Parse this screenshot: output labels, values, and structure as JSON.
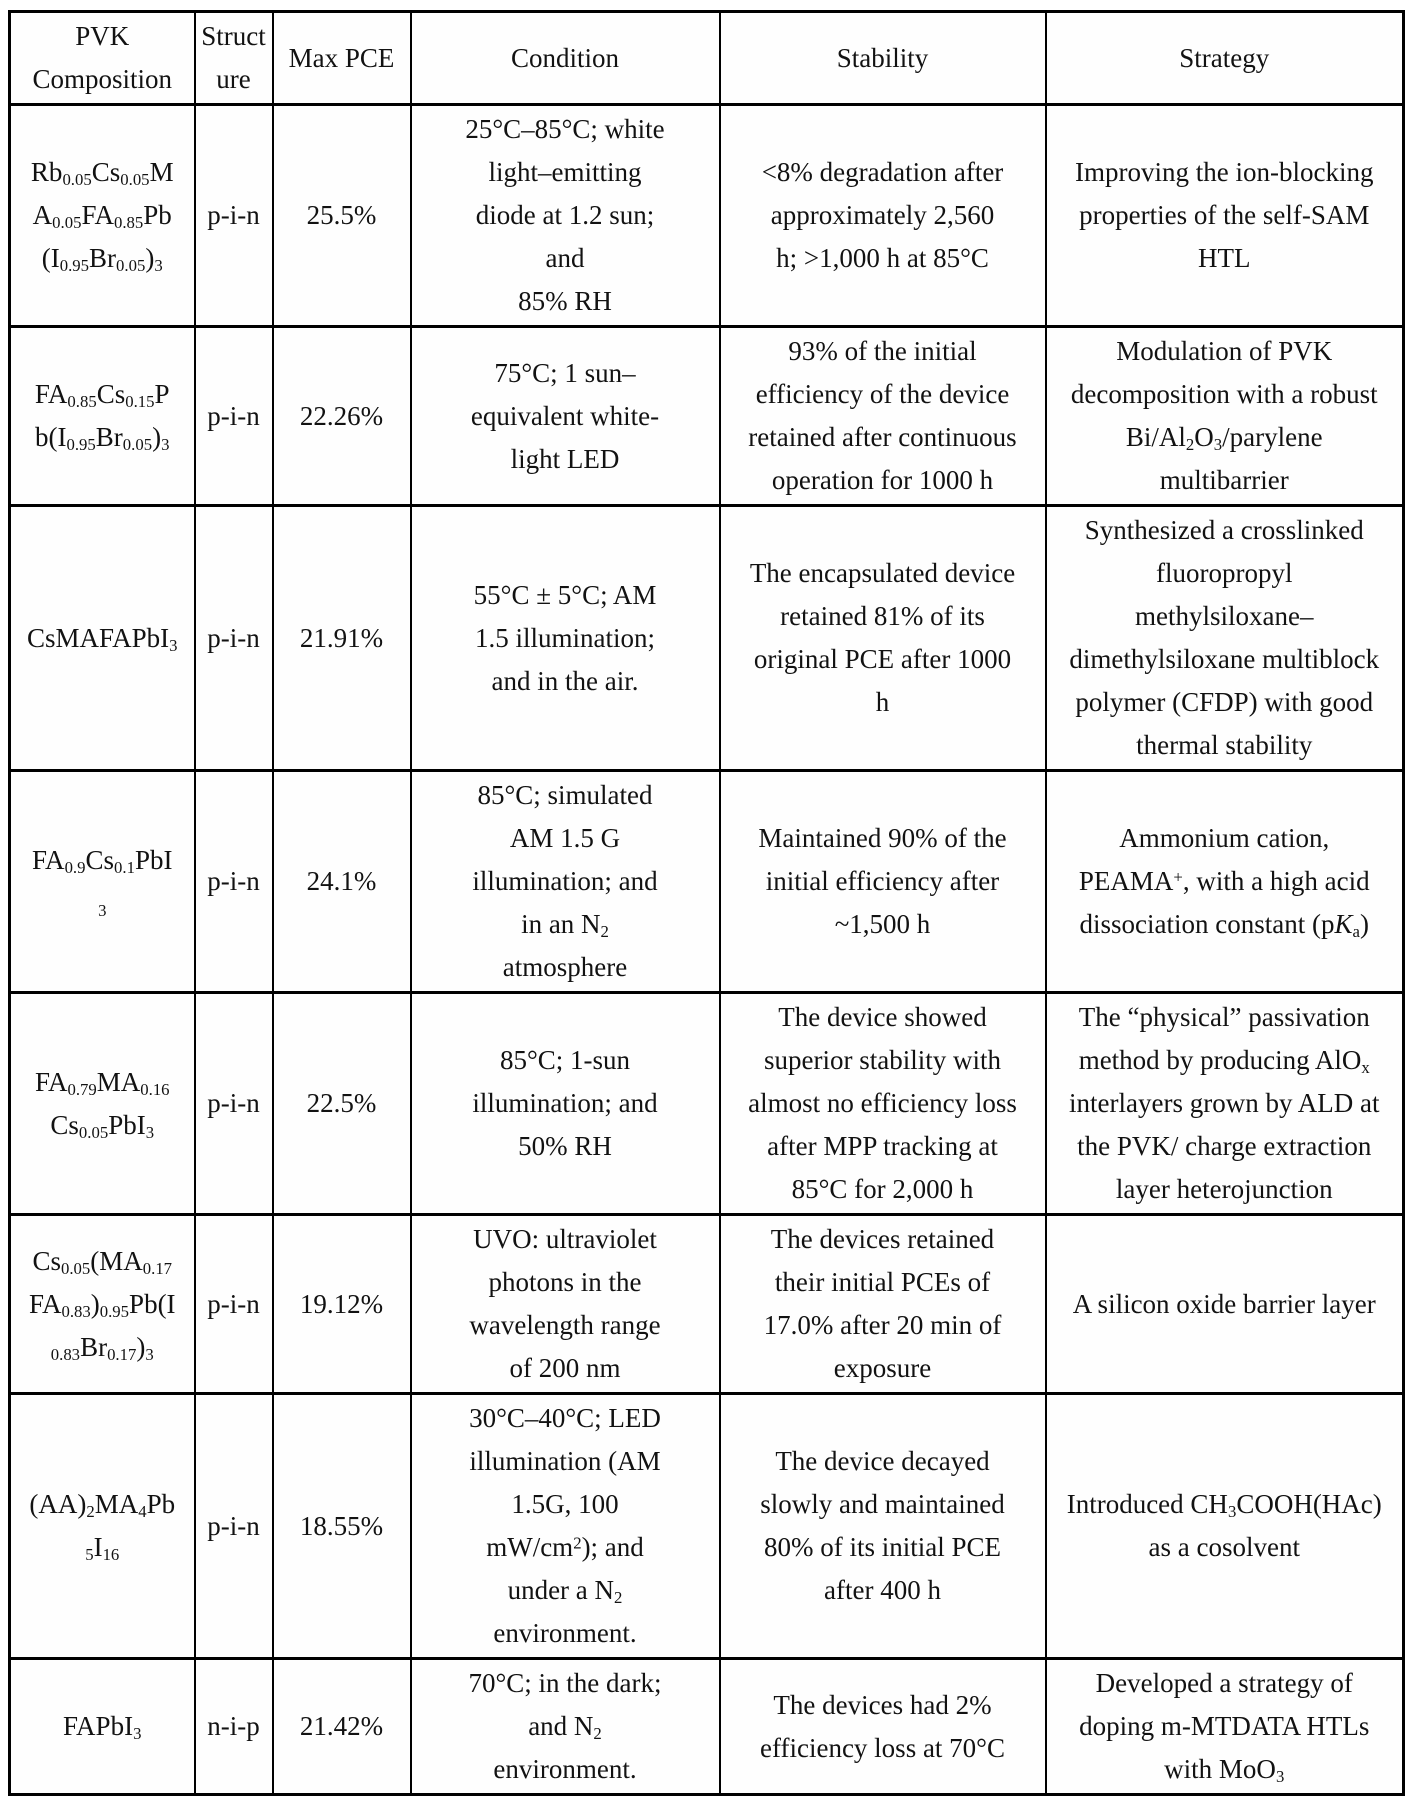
{
  "page": {
    "background_color": "#ffffff",
    "text_color": "#121212",
    "border_color": "#000000"
  },
  "table": {
    "columns": [
      "PVK\nComposition",
      "Struct\nure",
      "Max PCE",
      "Condition",
      "Stability",
      "Strategy"
    ],
    "rows": [
      {
        "composition": "Rb_{0.05}Cs_{0.05}M\nA_{0.05}FA_{0.85}Pb\n(I_{0.95}Br_{0.05})_{3}",
        "structure": "p-i-n",
        "max_pce": "25.5%",
        "condition": "25°C–85°C; white\nlight–emitting\ndiode at 1.2 sun;\nand\n85% RH",
        "stability": "<8% degradation after\napproximately 2,560\nh; >1,000 h at 85°C",
        "strategy": "Improving the ion-blocking\nproperties of the self-SAM\nHTL"
      },
      {
        "composition": "FA_{0.85}Cs_{0.15}P\nb(I_{0.95}Br_{0.05})_{3}",
        "structure": "p-i-n",
        "max_pce": "22.26%",
        "condition": "75°C; 1 sun–\nequivalent white-\nlight LED",
        "stability": "93% of the initial\nefficiency of the device\nretained after continuous\noperation for 1000 h",
        "strategy": "Modulation of PVK\ndecomposition with a robust\nBi/Al_{2}O_{3}/parylene\nmultibarrier"
      },
      {
        "composition": "CsMAFAPbI_{3}",
        "structure": "p-i-n",
        "max_pce": "21.91%",
        "condition": "55°C ± 5°C; AM\n1.5 illumination;\nand in the air.",
        "stability": "The encapsulated device\nretained 81% of its\noriginal PCE after 1000\nh",
        "strategy": "Synthesized a crosslinked\nfluoropropyl\nmethylsiloxane–\ndimethylsiloxane multiblock\npolymer (CFDP) with good\nthermal stability"
      },
      {
        "composition": "FA_{0.9}Cs_{0.1}PbI\n_{3}",
        "structure": "p-i-n",
        "max_pce": "24.1%",
        "condition": "85°C; simulated\nAM 1.5 G\nillumination; and\nin an N_{2}\natmosphere",
        "stability": "Maintained 90% of the\ninitial efficiency after\n~1,500 h",
        "strategy": "Ammonium cation,\nPEAMA^{+}, with a high acid\ndissociation constant (p*K*_{a})"
      },
      {
        "composition": "FA_{0.79}MA_{0.16}\nCs_{0.05}PbI_{3}",
        "structure": "p-i-n",
        "max_pce": "22.5%",
        "condition": "85°C; 1-sun\nillumination; and\n50% RH",
        "stability": "The device showed\nsuperior stability with\nalmost no efficiency loss\nafter MPP tracking at\n85°C for 2,000 h",
        "strategy": "The “physical” passivation\nmethod by producing AlO_{x}\ninterlayers grown by ALD at\nthe PVK/ charge extraction\nlayer heterojunction"
      },
      {
        "composition": "Cs_{0.05}(MA_{0.17}\nFA_{0.83})_{0.95}Pb(I\n_{0.83}Br_{0.17})_{3}",
        "structure": "p-i-n",
        "max_pce": "19.12%",
        "condition": "UVO: ultraviolet\nphotons in the\nwavelength range\nof 200 nm",
        "stability": "The devices retained\ntheir initial PCEs of\n17.0% after 20 min of\nexposure",
        "strategy": "A silicon oxide barrier layer"
      },
      {
        "composition": "(AA)_{2}MA_{4}Pb\n_{5}I_{16}",
        "structure": "p-i-n",
        "max_pce": "18.55%",
        "condition": "30°C–40°C; LED\nillumination (AM\n1.5G, 100\nmW/cm^{2}); and\nunder a N_{2}\nenvironment.",
        "stability": "The device decayed\nslowly and maintained\n80% of its initial PCE\nafter 400 h",
        "strategy": "Introduced CH_{3}COOH(HAc)\nas a cosolvent"
      },
      {
        "composition": "FAPbI_{3}",
        "structure": "n-i-p",
        "max_pce": "21.42%",
        "condition": "70°C; in the dark;\nand N_{2}\nenvironment.",
        "stability": "The devices had 2%\nefficiency loss at 70°C",
        "strategy": "Developed a strategy of\ndoping m-MTDATA HTLs\nwith MoO_{3}"
      }
    ]
  }
}
